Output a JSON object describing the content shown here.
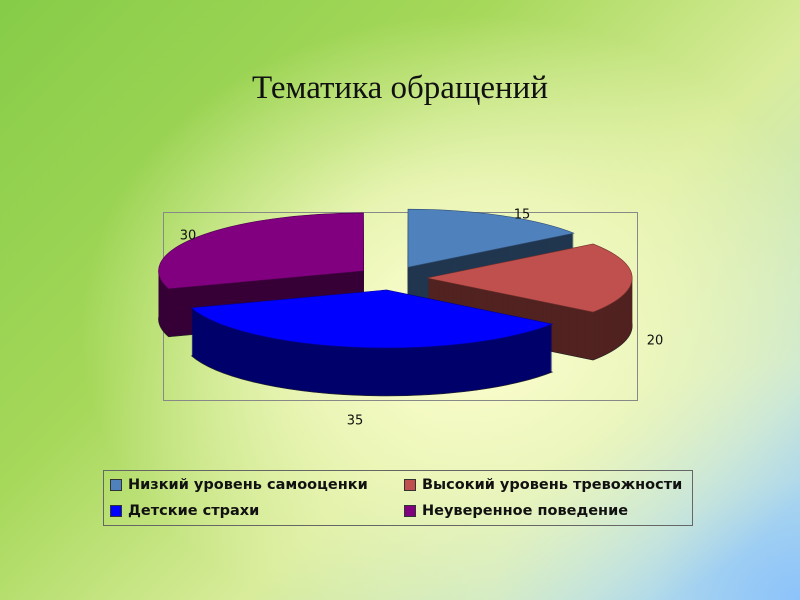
{
  "title": "Тематика обращений",
  "chart_data": {
    "type": "pie",
    "style": "3d-exploded",
    "title": "Тематика обращений",
    "legend_position": "bottom",
    "series": [
      {
        "name": "Низкий уровень самооценки",
        "value": 15,
        "color": "#4f81bd"
      },
      {
        "name": "Высокий уровень тревожности",
        "value": 20,
        "color": "#c0504d"
      },
      {
        "name": "Детские страхи",
        "value": 35,
        "color": "#0000ff"
      },
      {
        "name": "Неуверенное поведение",
        "value": 30,
        "color": "#800080"
      }
    ],
    "data_labels": [
      "15",
      "20",
      "35",
      "30"
    ]
  }
}
